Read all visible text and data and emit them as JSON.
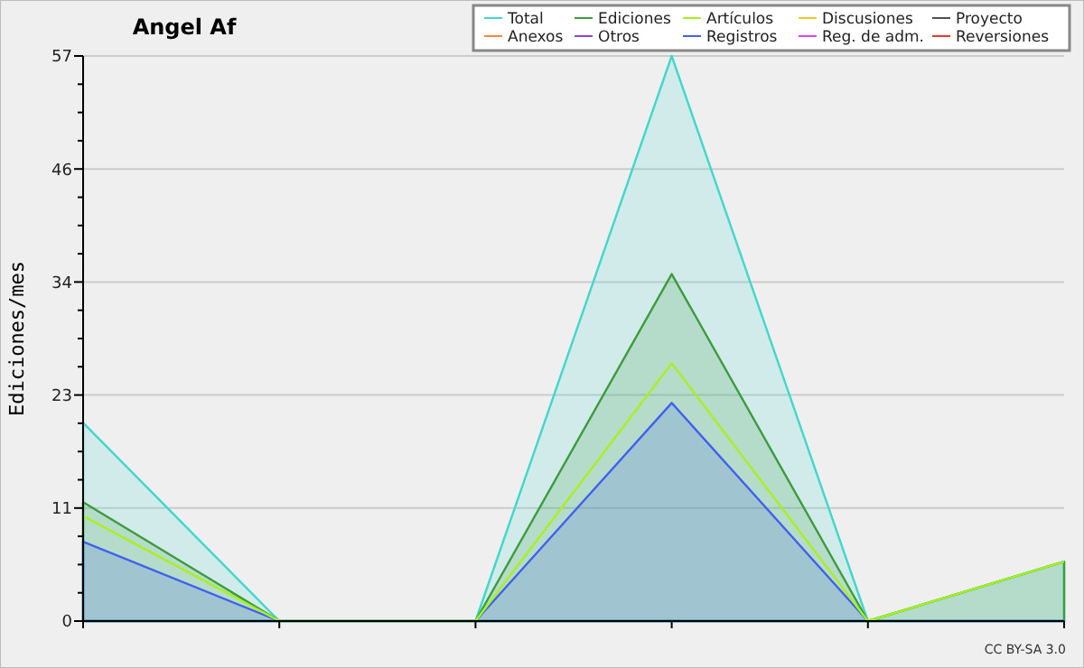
{
  "chart_data": {
    "type": "area",
    "title": "Angel Af",
    "ylabel": "Ediciones/mes",
    "annotations": [
      "CC BY-SA 3.0"
    ],
    "categories": [
      null,
      null,
      null,
      null,
      null,
      null
    ],
    "series": [
      {
        "name": "Total",
        "color": "#40d8cc",
        "values": [
          20,
          0,
          0,
          57,
          0,
          6
        ]
      },
      {
        "name": "Ediciones",
        "color": "#3c9c3c",
        "values": [
          12,
          0,
          0,
          35,
          0,
          6
        ]
      },
      {
        "name": "Artículos",
        "color": "#a8f020",
        "type": "line",
        "values": [
          10.6,
          0,
          0,
          26,
          0,
          6
        ]
      },
      {
        "name": "Discusiones",
        "color": "#f0c828",
        "type": "line",
        "values": [
          null,
          null,
          null,
          null,
          null,
          null
        ]
      },
      {
        "name": "Proyecto",
        "color": "#505050",
        "type": "line",
        "values": [
          null,
          null,
          null,
          null,
          null,
          null
        ]
      },
      {
        "name": "Anexos",
        "color": "#f08848",
        "type": "line",
        "values": [
          null,
          null,
          null,
          null,
          null,
          null
        ]
      },
      {
        "name": "Otros",
        "color": "#8844e8",
        "type": "line",
        "values": [
          null,
          null,
          null,
          null,
          null,
          null
        ]
      },
      {
        "name": "Registros",
        "color": "#4060f0",
        "values": [
          8,
          0,
          0,
          22,
          0,
          0
        ]
      },
      {
        "name": "Reg. de adm.",
        "color": "#d848f0",
        "type": "line",
        "values": [
          null,
          null,
          null,
          null,
          null,
          null
        ]
      },
      {
        "name": "Reversiones",
        "color": "#f03434",
        "type": "line",
        "values": [
          null,
          null,
          null,
          null,
          null,
          null
        ]
      }
    ],
    "ylim": [
      0,
      57
    ],
    "yticks": [
      0,
      {
        "value": 2.85,
        "label": null
      },
      {
        "value": 5.7,
        "label": null
      },
      {
        "value": 8.55,
        "label": null
      },
      {
        "value": 11.4,
        "label": "11"
      },
      {
        "value": 14.25,
        "label": null
      },
      {
        "value": 17.1,
        "label": null
      },
      {
        "value": 19.95,
        "label": null
      },
      {
        "value": 22.8,
        "label": "23"
      },
      {
        "value": 25.65,
        "label": null
      },
      {
        "value": 28.5,
        "label": null
      },
      {
        "value": 31.35,
        "label": null
      },
      {
        "value": 34.2,
        "label": "34"
      },
      {
        "value": 37.05,
        "label": null
      },
      {
        "value": 39.9,
        "label": null
      },
      {
        "value": 42.75,
        "label": null
      },
      {
        "value": 45.6,
        "label": "46"
      },
      {
        "value": 48.45,
        "label": null
      },
      {
        "value": 51.3,
        "label": null
      },
      {
        "value": 54.15,
        "label": null
      },
      57
    ],
    "grid": "y",
    "legend": "top right",
    "marker": "none",
    "line_style": "solid"
  }
}
